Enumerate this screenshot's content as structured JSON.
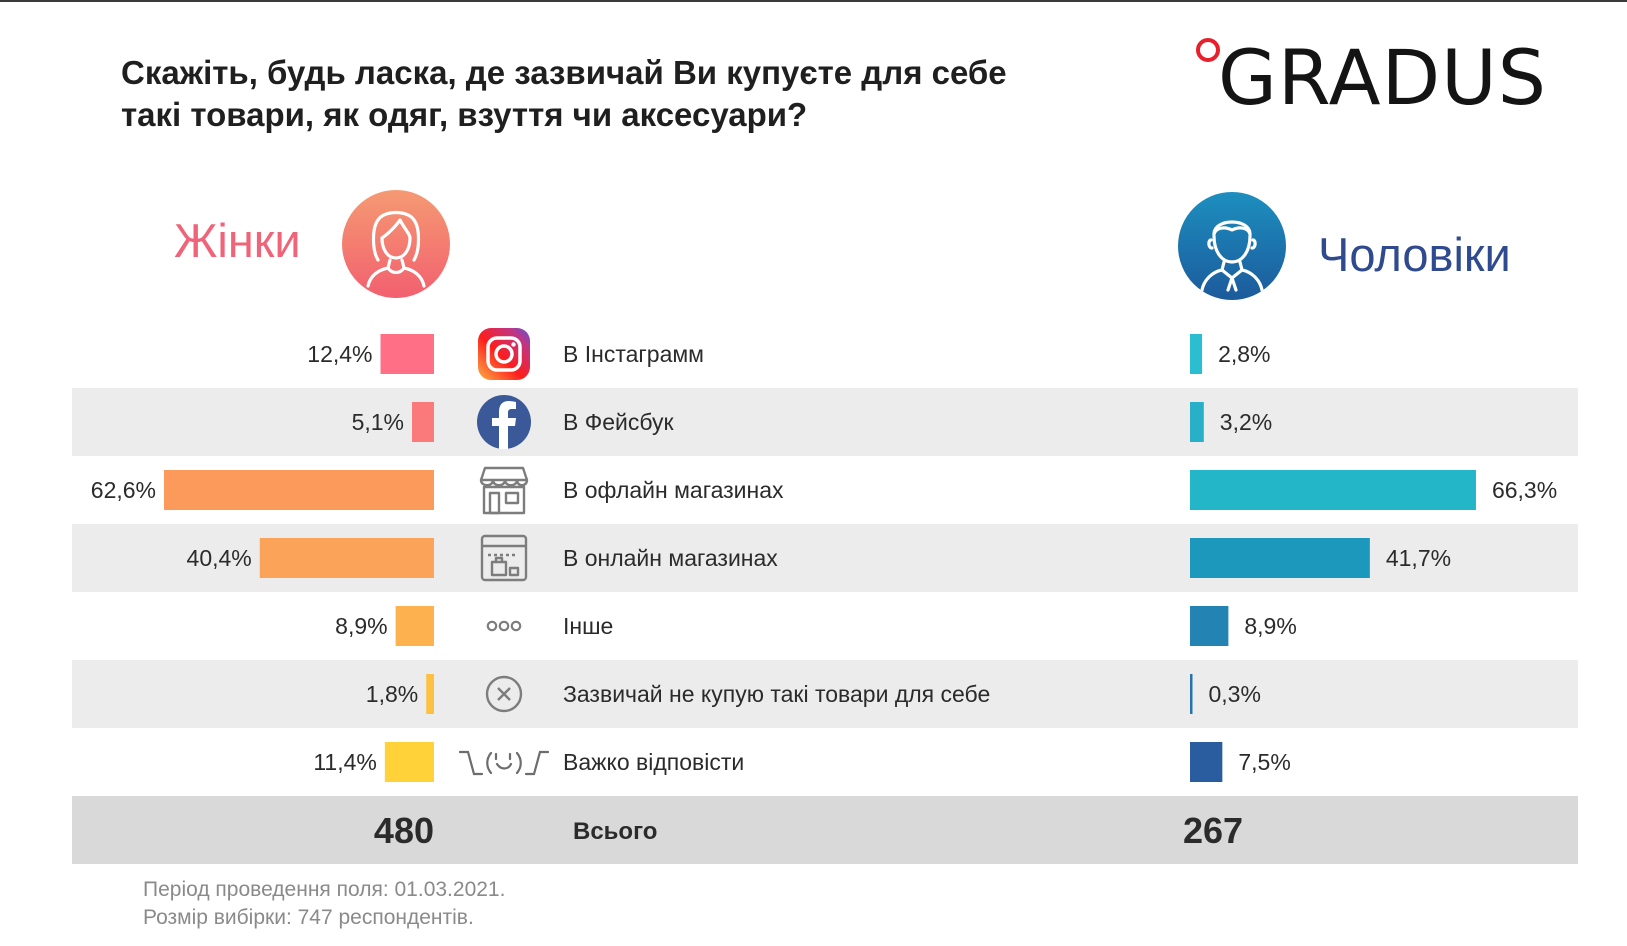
{
  "title": "Скажіть, будь ласка, де зазвичай Ви купуєте для себе такі товари, як одяг, взуття чи аксесуари?",
  "logo": {
    "text": "GRADUS"
  },
  "women_label": "Жінки",
  "men_label": "Чоловіки",
  "total_label": "Всього",
  "notes": {
    "period": "Період проведення поля: 01.03.2021.",
    "sample": "Розмір вибірки: 747 респондентів."
  },
  "chart_data": {
    "type": "bar",
    "title": "Скажіть, будь ласка, де зазвичай Ви купуєте для себе такі товари, як одяг, взуття чи аксесуари?",
    "orientation": "horizontal-butterfly",
    "categories": [
      "В Інстаграмм",
      "В Фейсбук",
      "В офлайн магазинах",
      "В онлайн магазинах",
      "Інше",
      "Зазвичай не купую такі товари для себе",
      "Важко відповісти"
    ],
    "icons": [
      "instagram-icon",
      "facebook-icon",
      "store-icon",
      "online-shop-icon",
      "dots-icon",
      "cross-circle-icon",
      "shrug-icon"
    ],
    "series": [
      {
        "name": "Жінки",
        "values": [
          12.4,
          5.1,
          62.6,
          40.4,
          8.9,
          1.8,
          11.4
        ],
        "labels": [
          "12,4%",
          "5,1%",
          "62,6%",
          "40,4%",
          "8,9%",
          "1,8%",
          "11,4%"
        ],
        "total": "480",
        "colors": [
          "#ff6f86",
          "#fa7a7b",
          "#fc9a5c",
          "#fca35a",
          "#fdb14f",
          "#fdc040",
          "#ffd23a"
        ]
      },
      {
        "name": "Чоловіки",
        "values": [
          2.8,
          3.2,
          66.3,
          41.7,
          8.9,
          0.3,
          7.5
        ],
        "labels": [
          "2,8%",
          "3,2%",
          "66,3%",
          "41,7%",
          "8,9%",
          "0,3%",
          "7,5%"
        ],
        "total": "267",
        "colors": [
          "#2bbdd0",
          "#27b0c8",
          "#23b6c8",
          "#1d98bd",
          "#2384b4",
          "#2773ab",
          "#2a5d9f"
        ]
      }
    ],
    "xlim": [
      0,
      70
    ],
    "unit": "%"
  }
}
